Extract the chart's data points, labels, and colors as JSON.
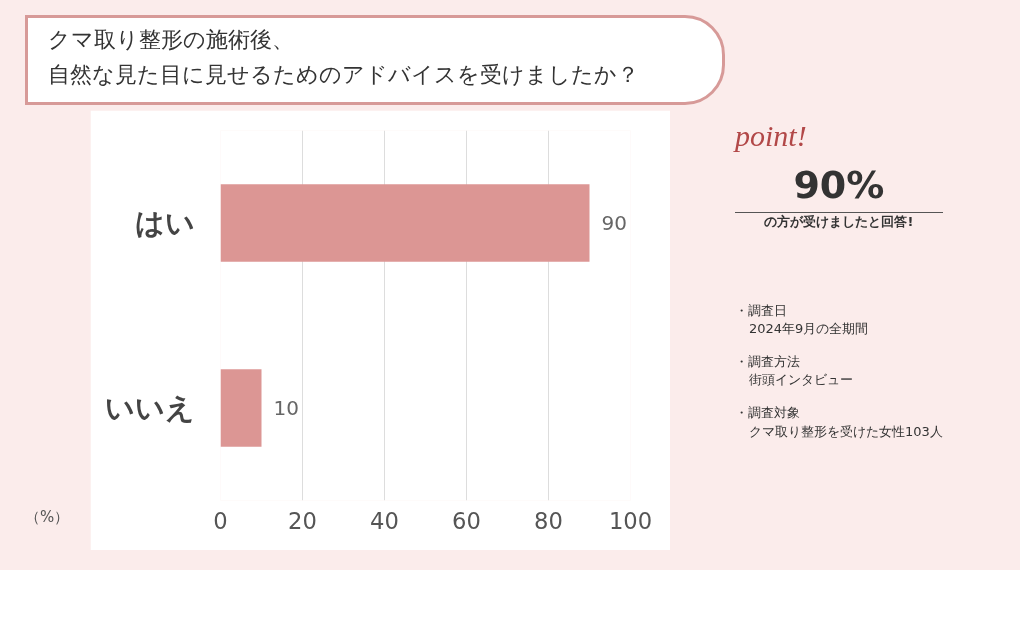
{
  "chart_data": {
    "type": "bar",
    "orientation": "horizontal",
    "title": "クマ取り整形の施術後、",
    "subtitle": "自然な見た目に見せるためのアドバイスを受けましたか？",
    "xlabel": "（%）",
    "categories": [
      "はい",
      "いいえ"
    ],
    "values": [
      90,
      10
    ],
    "color": "#dc9694",
    "xlim": [
      0,
      100
    ],
    "xticks": [
      0,
      20,
      40,
      60,
      80,
      100
    ],
    "grid": "x",
    "data_labels": true,
    "annotations": [
      "point!",
      "90%",
      "の方が受けましたと回答!",
      "・調査日",
      "2024年9月の全期間",
      "・調査方法",
      "街頭インタビュー",
      "・調査対象",
      "クマ取り整形を受けた女性103人"
    ]
  }
}
